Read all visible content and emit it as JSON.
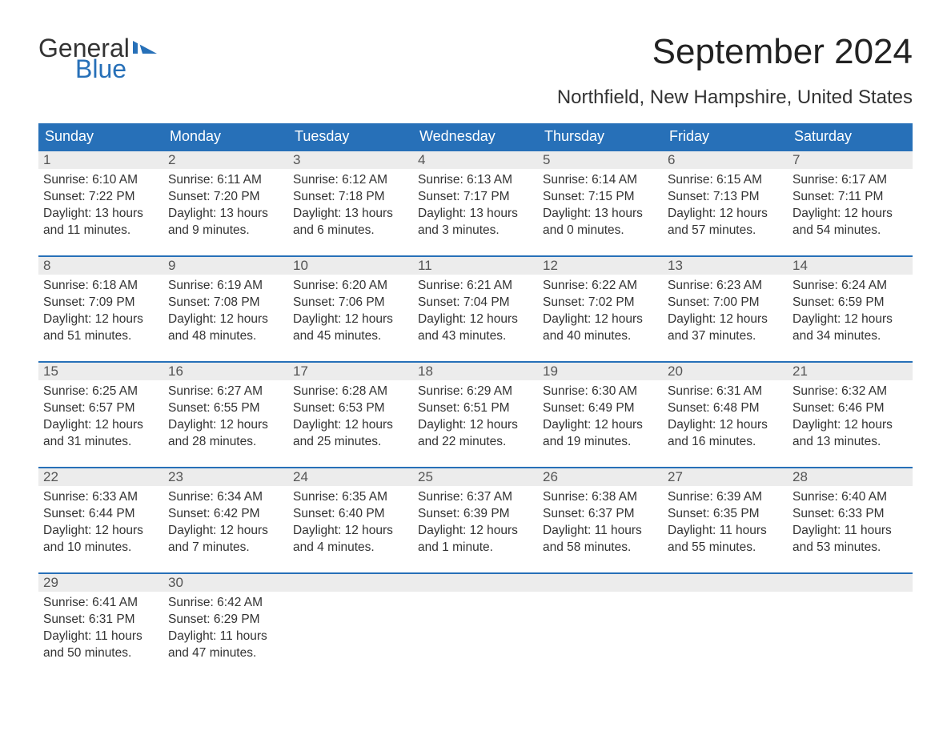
{
  "logo": {
    "line1": "General",
    "line2": "Blue",
    "flag_color": "#2770b8"
  },
  "title": "September 2024",
  "subtitle": "Northfield, New Hampshire, United States",
  "colors": {
    "header_bg": "#2770b8",
    "header_text": "#ffffff",
    "daynum_bg": "#ececec",
    "daynum_border": "#2770b8",
    "body_text": "#333333",
    "page_bg": "#ffffff"
  },
  "calendar": {
    "type": "table",
    "columns": [
      "Sunday",
      "Monday",
      "Tuesday",
      "Wednesday",
      "Thursday",
      "Friday",
      "Saturday"
    ],
    "days": [
      {
        "n": 1,
        "sunrise": "6:10 AM",
        "sunset": "7:22 PM",
        "dl": "13 hours and 11 minutes."
      },
      {
        "n": 2,
        "sunrise": "6:11 AM",
        "sunset": "7:20 PM",
        "dl": "13 hours and 9 minutes."
      },
      {
        "n": 3,
        "sunrise": "6:12 AM",
        "sunset": "7:18 PM",
        "dl": "13 hours and 6 minutes."
      },
      {
        "n": 4,
        "sunrise": "6:13 AM",
        "sunset": "7:17 PM",
        "dl": "13 hours and 3 minutes."
      },
      {
        "n": 5,
        "sunrise": "6:14 AM",
        "sunset": "7:15 PM",
        "dl": "13 hours and 0 minutes."
      },
      {
        "n": 6,
        "sunrise": "6:15 AM",
        "sunset": "7:13 PM",
        "dl": "12 hours and 57 minutes."
      },
      {
        "n": 7,
        "sunrise": "6:17 AM",
        "sunset": "7:11 PM",
        "dl": "12 hours and 54 minutes."
      },
      {
        "n": 8,
        "sunrise": "6:18 AM",
        "sunset": "7:09 PM",
        "dl": "12 hours and 51 minutes."
      },
      {
        "n": 9,
        "sunrise": "6:19 AM",
        "sunset": "7:08 PM",
        "dl": "12 hours and 48 minutes."
      },
      {
        "n": 10,
        "sunrise": "6:20 AM",
        "sunset": "7:06 PM",
        "dl": "12 hours and 45 minutes."
      },
      {
        "n": 11,
        "sunrise": "6:21 AM",
        "sunset": "7:04 PM",
        "dl": "12 hours and 43 minutes."
      },
      {
        "n": 12,
        "sunrise": "6:22 AM",
        "sunset": "7:02 PM",
        "dl": "12 hours and 40 minutes."
      },
      {
        "n": 13,
        "sunrise": "6:23 AM",
        "sunset": "7:00 PM",
        "dl": "12 hours and 37 minutes."
      },
      {
        "n": 14,
        "sunrise": "6:24 AM",
        "sunset": "6:59 PM",
        "dl": "12 hours and 34 minutes."
      },
      {
        "n": 15,
        "sunrise": "6:25 AM",
        "sunset": "6:57 PM",
        "dl": "12 hours and 31 minutes."
      },
      {
        "n": 16,
        "sunrise": "6:27 AM",
        "sunset": "6:55 PM",
        "dl": "12 hours and 28 minutes."
      },
      {
        "n": 17,
        "sunrise": "6:28 AM",
        "sunset": "6:53 PM",
        "dl": "12 hours and 25 minutes."
      },
      {
        "n": 18,
        "sunrise": "6:29 AM",
        "sunset": "6:51 PM",
        "dl": "12 hours and 22 minutes."
      },
      {
        "n": 19,
        "sunrise": "6:30 AM",
        "sunset": "6:49 PM",
        "dl": "12 hours and 19 minutes."
      },
      {
        "n": 20,
        "sunrise": "6:31 AM",
        "sunset": "6:48 PM",
        "dl": "12 hours and 16 minutes."
      },
      {
        "n": 21,
        "sunrise": "6:32 AM",
        "sunset": "6:46 PM",
        "dl": "12 hours and 13 minutes."
      },
      {
        "n": 22,
        "sunrise": "6:33 AM",
        "sunset": "6:44 PM",
        "dl": "12 hours and 10 minutes."
      },
      {
        "n": 23,
        "sunrise": "6:34 AM",
        "sunset": "6:42 PM",
        "dl": "12 hours and 7 minutes."
      },
      {
        "n": 24,
        "sunrise": "6:35 AM",
        "sunset": "6:40 PM",
        "dl": "12 hours and 4 minutes."
      },
      {
        "n": 25,
        "sunrise": "6:37 AM",
        "sunset": "6:39 PM",
        "dl": "12 hours and 1 minute."
      },
      {
        "n": 26,
        "sunrise": "6:38 AM",
        "sunset": "6:37 PM",
        "dl": "11 hours and 58 minutes."
      },
      {
        "n": 27,
        "sunrise": "6:39 AM",
        "sunset": "6:35 PM",
        "dl": "11 hours and 55 minutes."
      },
      {
        "n": 28,
        "sunrise": "6:40 AM",
        "sunset": "6:33 PM",
        "dl": "11 hours and 53 minutes."
      },
      {
        "n": 29,
        "sunrise": "6:41 AM",
        "sunset": "6:31 PM",
        "dl": "11 hours and 50 minutes."
      },
      {
        "n": 30,
        "sunrise": "6:42 AM",
        "sunset": "6:29 PM",
        "dl": "11 hours and 47 minutes."
      }
    ],
    "labels": {
      "sunrise": "Sunrise:",
      "sunset": "Sunset:",
      "daylight": "Daylight:"
    },
    "start_weekday": 0,
    "font_sizes": {
      "title": 44,
      "subtitle": 24,
      "header": 18,
      "daynum": 17,
      "body": 15.5
    }
  }
}
